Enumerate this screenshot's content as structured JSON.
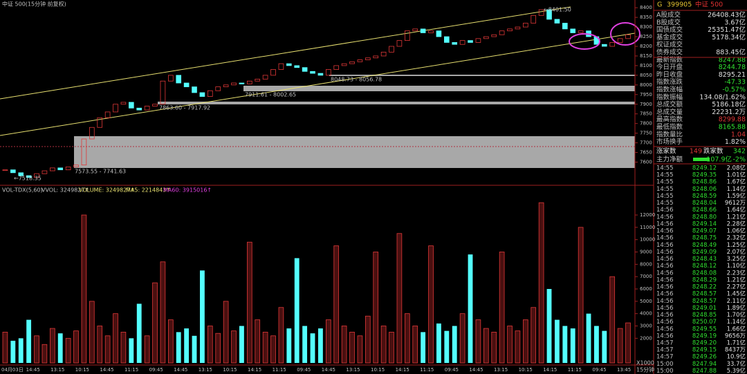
{
  "header": {
    "title": "中证 500(15分钟 前复权)"
  },
  "price_panel": {
    "ylim": [
      7480,
      8440
    ],
    "yticks": [
      8400,
      8350,
      8300,
      8250,
      8200,
      8150,
      8100,
      8050,
      8000,
      7950,
      7900,
      7850,
      7800,
      7750,
      7700,
      7650,
      7600
    ],
    "closes": [
      7560,
      7545,
      7530,
      7520,
      7540,
      7555,
      7570,
      7560,
      7575,
      7585,
      7720,
      7780,
      7830,
      7860,
      7900,
      7910,
      7880,
      7870,
      7890,
      7900,
      8020,
      8050,
      8010,
      7990,
      7960,
      7940,
      7970,
      7990,
      8000,
      8010,
      8005,
      8020,
      8030,
      8050,
      8080,
      8110,
      8100,
      8090,
      8070,
      8060,
      8050,
      8080,
      8100,
      8110,
      8120,
      8130,
      8140,
      8150,
      8170,
      8200,
      8230,
      8280,
      8290,
      8270,
      8280,
      8250,
      8220,
      8210,
      8230,
      8220,
      8240,
      8250,
      8260,
      8280,
      8290,
      8300,
      8320,
      8360,
      8390,
      8340,
      8320,
      8290,
      8270,
      8280,
      8250,
      8210,
      8200,
      8220,
      8240,
      8260
    ],
    "annotations": [
      "←7518.35",
      "7573.55 - 7741.63",
      "7863.60 - 7917.92",
      "7911.61 - 8002.65",
      "8048.73 - 8056.78",
      "←8401.50"
    ]
  },
  "volume_panel": {
    "labels": [
      "VOL-TDX(5,60)",
      "VVOL: 3249827↑",
      "VOLUME: 3249827↑",
      "MA5: 2214843↑",
      "MA60: 3915016↑"
    ],
    "ylim": [
      0,
      14300
    ],
    "yticks": [
      12000,
      11000,
      10000,
      9000,
      8000,
      7000,
      6000,
      5000,
      4000,
      3000,
      2000
    ],
    "unit": "X1000",
    "values": [
      2500,
      1800,
      2000,
      3500,
      2200,
      1500,
      2800,
      2400,
      2000,
      2600,
      12000,
      5000,
      3000,
      2200,
      4000,
      2500,
      2000,
      4800,
      2200,
      6500,
      8200,
      3500,
      2500,
      2800,
      2200,
      7500,
      3000,
      2400,
      5000,
      2600,
      3000,
      9800,
      3500,
      2500,
      2200,
      4500,
      2800,
      8500,
      3000,
      2400,
      2800,
      3500,
      9500,
      3000,
      2500,
      2200,
      3800,
      9000,
      3000,
      2500,
      10500,
      4000,
      3000,
      2500,
      9500,
      3200,
      2600,
      3000,
      4000,
      8800,
      3500,
      2800,
      2500,
      9000,
      3000,
      2600,
      3500,
      4500,
      13000,
      6000,
      3500,
      3000,
      2800,
      11000,
      4000,
      3000,
      2600,
      7000,
      2800,
      3250
    ]
  },
  "x_axis": {
    "labels": [
      "04月03日",
      "14:45",
      "13:15",
      "10:15",
      "14:45",
      "11:15",
      "09:45",
      "14:45",
      "13:15",
      "10:15",
      "14:15",
      "11:15",
      "09:45",
      "14:45",
      "13:15",
      "10:15",
      "14:15",
      "11:15",
      "09:45",
      "14:45",
      "13:15",
      "10:15",
      "14:15",
      "11:15",
      "09:45",
      "13:45"
    ],
    "period": "15分钟"
  },
  "quote": {
    "prefix": "G",
    "code": "399905",
    "name": "中证 500",
    "rows": [
      [
        "A股成交",
        "26408.43亿"
      ],
      [
        "B股成交",
        "3.67亿"
      ],
      [
        "国债成交",
        "25351.47亿"
      ],
      [
        "基金成交",
        "5178.34亿"
      ],
      [
        "权证成交",
        ""
      ],
      [
        "债券成交",
        "883.45亿"
      ],
      [
        "最新指数",
        "8247.88"
      ],
      [
        "今日开盘",
        "8244.78"
      ],
      [
        "昨日收盘",
        "8295.21"
      ],
      [
        "指数涨跌",
        "-47.33"
      ],
      [
        "指数涨幅",
        "-0.57%"
      ],
      [
        "指数振幅",
        "134.08/1.62%"
      ],
      [
        "总成交额",
        "5186.18亿"
      ],
      [
        "总成交量",
        "22231.2万"
      ],
      [
        "最高指数",
        "8299.88"
      ],
      [
        "最低指数",
        "8165.88"
      ],
      [
        "指数量比",
        "1.04"
      ],
      [
        "市场换手",
        "1.82%"
      ]
    ],
    "breadth": [
      "涨家数",
      "149",
      "跌家数",
      "342"
    ],
    "net_flow": [
      "主力净额",
      "-107.9亿",
      "-2%"
    ],
    "trades": [
      [
        "14:55",
        "8249.12",
        "2.08亿"
      ],
      [
        "14:55",
        "8249.35",
        "1.01亿"
      ],
      [
        "14:55",
        "8248.86",
        "1.67亿"
      ],
      [
        "14:55",
        "8248.06",
        "1.14亿"
      ],
      [
        "14:55",
        "8248.59",
        "1.59亿"
      ],
      [
        "14:55",
        "8248.04",
        "9612万"
      ],
      [
        "14:56",
        "8248.66",
        "1.64亿"
      ],
      [
        "14:56",
        "8248.80",
        "1.21亿"
      ],
      [
        "14:56",
        "8249.14",
        "2.28亿"
      ],
      [
        "14:56",
        "8249.07",
        "1.06亿"
      ],
      [
        "14:56",
        "8248.75",
        "2.32亿"
      ],
      [
        "14:56",
        "8248.49",
        "1.25亿"
      ],
      [
        "14:56",
        "8249.09",
        "2.07亿"
      ],
      [
        "14:56",
        "8248.43",
        "3.25亿"
      ],
      [
        "14:56",
        "8248.12",
        "1.10亿"
      ],
      [
        "14:56",
        "8248.08",
        "2.23亿"
      ],
      [
        "14:56",
        "8248.29",
        "1.21亿"
      ],
      [
        "14:56",
        "8248.22",
        "2.27亿"
      ],
      [
        "14:56",
        "8248.57",
        "1.45亿"
      ],
      [
        "14:56",
        "8248.57",
        "2.11亿"
      ],
      [
        "14:56",
        "8249.01",
        "1.89亿"
      ],
      [
        "14:56",
        "8248.85",
        "1.70亿"
      ],
      [
        "14:56",
        "8250.07",
        "1.14亿"
      ],
      [
        "14:56",
        "8249.55",
        "1.66亿"
      ],
      [
        "14:56",
        "8249.19",
        "9656万"
      ],
      [
        "14:57",
        "8249.20",
        "1.71亿"
      ],
      [
        "14:57",
        "8249.15",
        "8437万"
      ],
      [
        "14:57",
        "8249.26",
        "10.9亿"
      ],
      [
        "15:00",
        "8247.94",
        "33.7亿"
      ],
      [
        "15:00",
        "8247.88",
        "5.39亿"
      ]
    ]
  }
}
